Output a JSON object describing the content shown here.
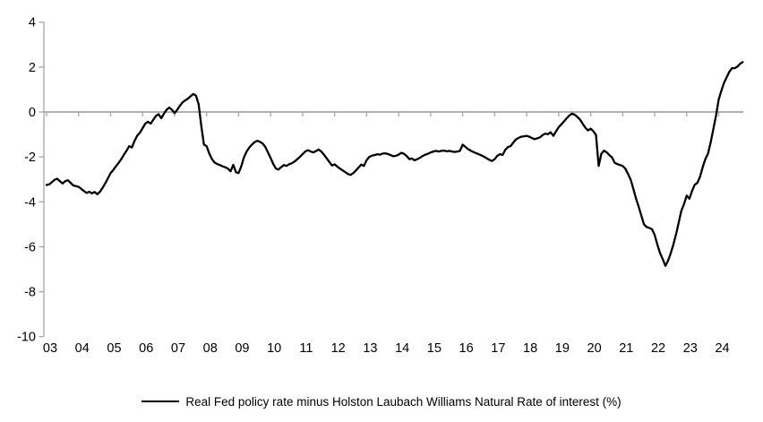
{
  "chart": {
    "legend_label": "Real Fed policy rate minus Holston Laubach Williams Natural Rate of interest (%)",
    "colors": {
      "series_line": "#000000",
      "axis_line": "#a6a6a6",
      "tick_text": "#000000",
      "background": "#ffffff"
    }
  },
  "chart_data": {
    "type": "line",
    "title": "",
    "xlabel": "",
    "ylabel": "",
    "ylim": [
      -10,
      4
    ],
    "xlim": [
      2003,
      2024.9
    ],
    "grid": "zero-line-only",
    "legend_position": "bottom-center",
    "y_ticks": [
      4,
      2,
      0,
      -2,
      -4,
      -6,
      -8,
      -10
    ],
    "x_tick_labels": [
      "03",
      "04",
      "05",
      "06",
      "07",
      "08",
      "09",
      "10",
      "11",
      "12",
      "13",
      "14",
      "15",
      "16",
      "17",
      "18",
      "19",
      "20",
      "21",
      "22",
      "23",
      "24"
    ],
    "series": [
      {
        "name": "Real Fed policy rate minus Holston Laubach Williams Natural Rate of interest (%)",
        "color": "#000000",
        "start_year": 2003,
        "points_per_year": 12,
        "values": [
          -3.25,
          -3.22,
          -3.12,
          -3.02,
          -2.97,
          -3.08,
          -3.18,
          -3.08,
          -3.04,
          -3.15,
          -3.27,
          -3.3,
          -3.33,
          -3.42,
          -3.52,
          -3.6,
          -3.55,
          -3.62,
          -3.56,
          -3.66,
          -3.55,
          -3.38,
          -3.18,
          -2.95,
          -2.72,
          -2.58,
          -2.42,
          -2.27,
          -2.1,
          -1.9,
          -1.72,
          -1.52,
          -1.58,
          -1.28,
          -1.05,
          -0.92,
          -0.72,
          -0.52,
          -0.43,
          -0.52,
          -0.35,
          -0.17,
          -0.1,
          -0.28,
          -0.08,
          0.1,
          0.2,
          0.1,
          -0.05,
          0.1,
          0.28,
          0.43,
          0.52,
          0.6,
          0.7,
          0.8,
          0.73,
          0.35,
          -0.6,
          -1.45,
          -1.52,
          -1.85,
          -2.1,
          -2.25,
          -2.32,
          -2.36,
          -2.42,
          -2.46,
          -2.52,
          -2.64,
          -2.35,
          -2.68,
          -2.72,
          -2.42,
          -2.02,
          -1.76,
          -1.58,
          -1.45,
          -1.34,
          -1.28,
          -1.33,
          -1.4,
          -1.55,
          -1.8,
          -2.05,
          -2.32,
          -2.52,
          -2.56,
          -2.45,
          -2.36,
          -2.4,
          -2.32,
          -2.28,
          -2.2,
          -2.1,
          -2.0,
          -1.88,
          -1.76,
          -1.7,
          -1.76,
          -1.8,
          -1.74,
          -1.67,
          -1.76,
          -1.9,
          -2.06,
          -2.22,
          -2.38,
          -2.33,
          -2.43,
          -2.52,
          -2.6,
          -2.68,
          -2.76,
          -2.8,
          -2.72,
          -2.6,
          -2.47,
          -2.34,
          -2.4,
          -2.14,
          -2.0,
          -1.94,
          -1.92,
          -1.88,
          -1.9,
          -1.85,
          -1.84,
          -1.87,
          -1.92,
          -1.97,
          -1.95,
          -1.9,
          -1.82,
          -1.86,
          -1.96,
          -2.1,
          -2.07,
          -2.15,
          -2.1,
          -2.04,
          -1.96,
          -1.9,
          -1.86,
          -1.8,
          -1.76,
          -1.73,
          -1.76,
          -1.73,
          -1.72,
          -1.75,
          -1.73,
          -1.76,
          -1.78,
          -1.76,
          -1.73,
          -1.45,
          -1.55,
          -1.65,
          -1.72,
          -1.78,
          -1.83,
          -1.88,
          -1.93,
          -1.99,
          -2.06,
          -2.13,
          -2.18,
          -2.1,
          -1.95,
          -1.88,
          -1.91,
          -1.68,
          -1.56,
          -1.52,
          -1.36,
          -1.22,
          -1.15,
          -1.1,
          -1.08,
          -1.06,
          -1.1,
          -1.16,
          -1.21,
          -1.17,
          -1.13,
          -1.02,
          -0.96,
          -0.99,
          -0.9,
          -1.06,
          -0.86,
          -0.68,
          -0.55,
          -0.42,
          -0.28,
          -0.15,
          -0.07,
          -0.12,
          -0.22,
          -0.34,
          -0.52,
          -0.7,
          -0.82,
          -0.74,
          -0.86,
          -1.02,
          -2.4,
          -1.86,
          -1.72,
          -1.8,
          -1.92,
          -2.02,
          -2.26,
          -2.32,
          -2.36,
          -2.4,
          -2.52,
          -2.76,
          -3.02,
          -3.42,
          -3.85,
          -4.22,
          -4.62,
          -5.0,
          -5.12,
          -5.16,
          -5.22,
          -5.48,
          -5.9,
          -6.28,
          -6.55,
          -6.85,
          -6.62,
          -6.3,
          -5.9,
          -5.45,
          -4.92,
          -4.4,
          -4.1,
          -3.72,
          -3.86,
          -3.52,
          -3.24,
          -3.16,
          -2.88,
          -2.45,
          -2.1,
          -1.85,
          -1.35,
          -0.75,
          -0.15,
          0.55,
          0.95,
          1.3,
          1.55,
          1.8,
          1.95,
          1.95,
          2.02,
          2.15,
          2.22
        ]
      }
    ]
  }
}
